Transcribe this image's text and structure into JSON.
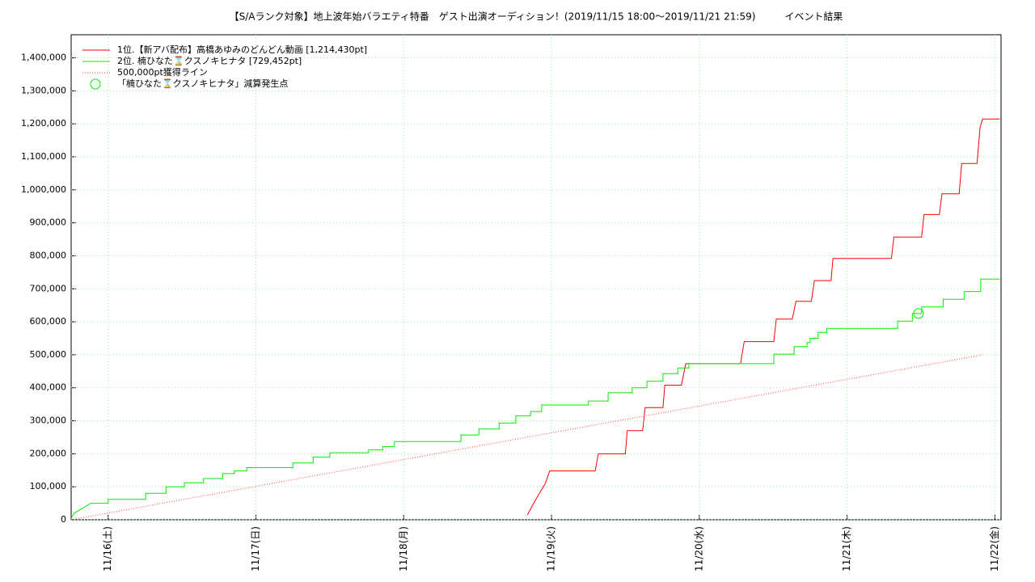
{
  "chart_data": {
    "type": "line",
    "title": "【S/Aランク対象】地上波年始バラエティ特番　ゲスト出演オーディション！(2019/11/15 18:00～2019/11/21 21:59)　　　イベント結果",
    "xlim": [
      0,
      151
    ],
    "xticks": [
      {
        "value": 6,
        "label": "11/16(土)"
      },
      {
        "value": 30,
        "label": "11/17(日)"
      },
      {
        "value": 54,
        "label": "11/18(月)"
      },
      {
        "value": 78,
        "label": "11/19(火)"
      },
      {
        "value": 102,
        "label": "11/20(水)"
      },
      {
        "value": 126,
        "label": "11/21(木)"
      },
      {
        "value": 150,
        "label": "11/22(金)"
      }
    ],
    "ylim": [
      0,
      1470000
    ],
    "yticks": [
      0,
      {
        "value": 100000,
        "label": "100,000"
      },
      {
        "value": 200000,
        "label": "200,000"
      },
      {
        "value": 300000,
        "label": "300,000"
      },
      {
        "value": 400000,
        "label": "400,000"
      },
      {
        "value": 500000,
        "label": "500,000"
      },
      {
        "value": 600000,
        "label": "600,000"
      },
      {
        "value": 700000,
        "label": "700,000"
      },
      {
        "value": 800000,
        "label": "800,000"
      },
      {
        "value": 900000,
        "label": "900,000"
      },
      {
        "value": 1000000,
        "label": "1,000,000"
      },
      {
        "value": 1100000,
        "label": "1,100,000"
      },
      {
        "value": 1200000,
        "label": "1,200,000"
      },
      {
        "value": 1300000,
        "label": "1,300,000"
      },
      {
        "value": 1400000,
        "label": "1,400,000"
      }
    ],
    "grid": true,
    "legend": "top-left",
    "series": [
      {
        "name": "1位.【新アバ配布】高橋あゆみのどんどん動画 [1,214,430pt]",
        "color": "#ff0000",
        "style": "solid",
        "x": [
          74.1,
          75.1,
          76.2,
          77.0,
          77.7,
          85.1,
          85.6,
          90.0,
          90.3,
          92.8,
          93.2,
          96.1,
          96.4,
          99.1,
          99.8,
          108.7,
          109.3,
          114.1,
          114.5,
          117.1,
          117.7,
          120.2,
          120.7,
          123.4,
          123.7,
          133.2,
          133.6,
          138.1,
          138.5,
          141.0,
          141.4,
          144.2,
          144.6,
          147.1,
          147.6,
          148.0,
          150.8
        ],
        "values": [
          15000,
          50000,
          85000,
          110000,
          148000,
          148000,
          200000,
          200000,
          270000,
          270000,
          340000,
          340000,
          408000,
          408000,
          473000,
          473000,
          540000,
          540000,
          608000,
          608000,
          662000,
          662000,
          725000,
          725000,
          792000,
          792000,
          857000,
          857000,
          925000,
          925000,
          988000,
          988000,
          1080000,
          1080000,
          1190000,
          1214430,
          1214430
        ]
      },
      {
        "name": "2位. 楠ひなた⌛クスノキヒナタ [729,452pt]",
        "color": "#00ee00",
        "style": "solid",
        "x": [
          0,
          0.5,
          1.6,
          3.2,
          6.0,
          6.0,
          12.1,
          12.1,
          15.4,
          15.4,
          18.4,
          18.4,
          21.5,
          21.5,
          24.6,
          24.6,
          26.5,
          26.5,
          28.5,
          28.5,
          36.0,
          36.0,
          39.3,
          39.3,
          42.0,
          42.0,
          48.3,
          48.3,
          50.6,
          50.6,
          52.5,
          52.5,
          63.3,
          63.3,
          66.2,
          66.2,
          69.5,
          69.5,
          72.2,
          72.2,
          74.6,
          74.6,
          76.4,
          76.4,
          84.0,
          84.0,
          87.2,
          87.2,
          91.1,
          91.1,
          93.5,
          93.5,
          96.1,
          96.1,
          98.5,
          98.5,
          100.3,
          100.3,
          114.1,
          114.1,
          117.4,
          117.4,
          119.5,
          119.5,
          120.0,
          120.0,
          121.3,
          121.3,
          122.7,
          122.7,
          134.2,
          134.2,
          136.6,
          136.6,
          138.1,
          138.1,
          141.6,
          141.6,
          145.0,
          145.0,
          147.7,
          147.7,
          150.8
        ],
        "values": [
          5000,
          20000,
          32000,
          50000,
          50000,
          62000,
          62000,
          80000,
          80000,
          100000,
          100000,
          112000,
          112000,
          125000,
          125000,
          140000,
          140000,
          148000,
          148000,
          158000,
          158000,
          172000,
          172000,
          190000,
          190000,
          203000,
          203000,
          212000,
          212000,
          222000,
          222000,
          237000,
          237000,
          257000,
          257000,
          275000,
          275000,
          293000,
          293000,
          315000,
          315000,
          328000,
          328000,
          348000,
          348000,
          360000,
          360000,
          385000,
          385000,
          400000,
          400000,
          420000,
          420000,
          443000,
          443000,
          460000,
          460000,
          473000,
          473000,
          502000,
          502000,
          525000,
          525000,
          537000,
          537000,
          550000,
          550000,
          568000,
          568000,
          580000,
          580000,
          602000,
          602000,
          625000,
          625000,
          645000,
          645000,
          668000,
          668000,
          692000,
          692000,
          729452,
          729452
        ]
      },
      {
        "name": "500,000pt獲得ライン",
        "color": "#ff4040",
        "style": "dotted",
        "x": [
          0,
          148.0
        ],
        "values": [
          0,
          500000
        ]
      },
      {
        "name": "「楠ひなた⌛クスノキヒナタ」減算発生点",
        "color": "#00ee00",
        "style": "circle",
        "x": [
          137.6
        ],
        "values": [
          625000
        ]
      }
    ]
  }
}
